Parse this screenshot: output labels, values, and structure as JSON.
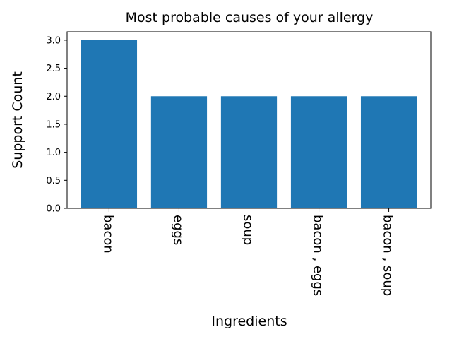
{
  "chart_data": {
    "type": "bar",
    "title": "Most probable causes of your allergy",
    "xlabel": "Ingredients",
    "ylabel": "Support Count",
    "categories": [
      "bacon",
      "eggs",
      "soup",
      "bacon , eggs",
      "bacon , soup"
    ],
    "values": [
      3,
      2,
      2,
      2,
      2
    ],
    "ylim": [
      0,
      3.15
    ],
    "yticks": [
      "0.0",
      "0.5",
      "1.0",
      "1.5",
      "2.0",
      "2.5",
      "3.0"
    ],
    "bar_color": "#1f77b4",
    "grid": false,
    "legend": "none"
  }
}
